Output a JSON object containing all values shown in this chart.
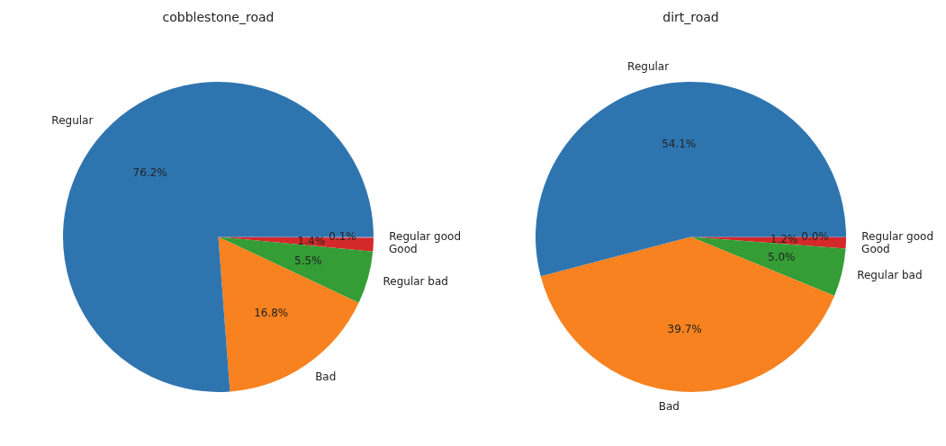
{
  "chart_data": [
    {
      "type": "pie",
      "title": "cobblestone_road",
      "categories": [
        "Regular",
        "Bad",
        "Regular bad",
        "Good",
        "Regular good"
      ],
      "values": [
        76.2,
        16.8,
        5.5,
        1.4,
        0.1
      ],
      "value_labels": [
        "76.2%",
        "16.8%",
        "5.5%",
        "1.4%",
        "0.1%"
      ],
      "colors": [
        "#2e75b0",
        "#f7821f",
        "#349d35",
        "#d3292a",
        "#9167bc"
      ],
      "legend": false
    },
    {
      "type": "pie",
      "title": "dirt_road",
      "categories": [
        "Regular",
        "Bad",
        "Regular bad",
        "Good",
        "Regular good"
      ],
      "values": [
        54.1,
        39.7,
        5.0,
        1.2,
        0.0
      ],
      "value_labels": [
        "54.1%",
        "39.7%",
        "5.0%",
        "1.2%",
        "0.0%"
      ],
      "colors": [
        "#2e75b0",
        "#f7821f",
        "#349d35",
        "#d3292a",
        "#9167bc"
      ],
      "legend": false
    }
  ]
}
